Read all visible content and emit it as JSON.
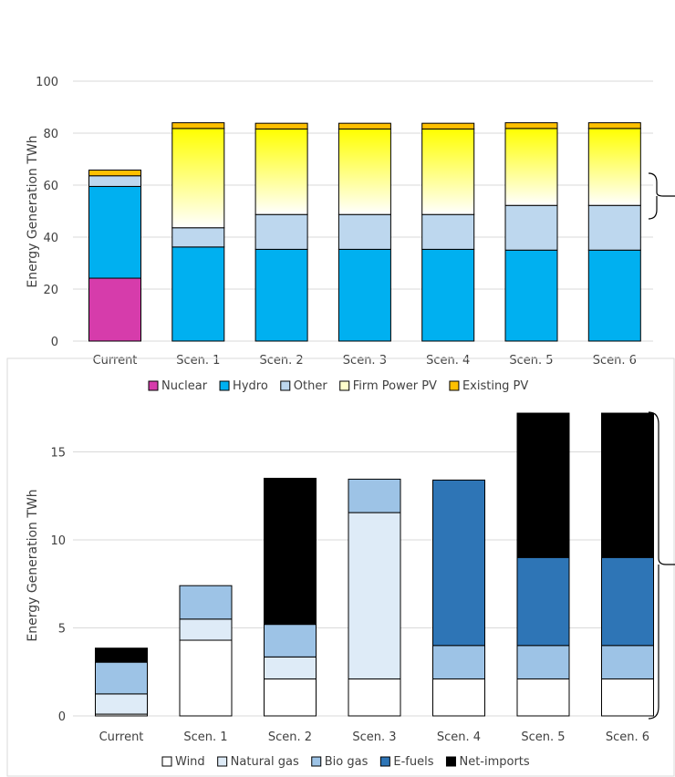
{
  "chart_data": [
    {
      "type": "bar",
      "stacked": true,
      "ylabel": "Energy Generation TWh",
      "ylim": [
        0,
        100
      ],
      "yticks": [
        "0",
        "20",
        "40",
        "60",
        "80",
        "100"
      ],
      "grid": true,
      "legend_position": "bottom",
      "categories": [
        "Current",
        "Scen. 1",
        "Scen. 2",
        "Scen. 3",
        "Scen. 4",
        "Scen. 5",
        "Scen. 6"
      ],
      "series": [
        {
          "name": "Nuclear",
          "color": "#d63cab",
          "values": [
            24.2,
            0,
            0,
            0,
            0,
            0,
            0
          ]
        },
        {
          "name": "Hydro",
          "color": "#00b0f0",
          "values": [
            35.3,
            36.2,
            35.3,
            35.3,
            35.3,
            35.0,
            35.0
          ]
        },
        {
          "name": "Other",
          "color": "#bdd7ee",
          "values": [
            4.1,
            7.4,
            13.4,
            13.4,
            13.4,
            17.2,
            17.2
          ]
        },
        {
          "name": "Firm Power PV",
          "color": "#ffff00",
          "gradient": true,
          "values": [
            0,
            38.2,
            32.9,
            32.9,
            32.9,
            29.6,
            29.6
          ]
        },
        {
          "name": "Existing PV",
          "color": "#ffc000",
          "values": [
            2.2,
            2.2,
            2.2,
            2.2,
            2.2,
            2.2,
            2.2
          ]
        }
      ]
    },
    {
      "type": "bar",
      "stacked": true,
      "ylabel": "Energy Generation TWh",
      "ylim": [
        0,
        17.2
      ],
      "yticks": [
        "0",
        "5",
        "10",
        "15"
      ],
      "grid": true,
      "legend_position": "bottom",
      "categories": [
        "Current",
        "Scen. 1",
        "Scen. 2",
        "Scen. 3",
        "Scen. 4",
        "Scen. 5",
        "Scen. 6"
      ],
      "series": [
        {
          "name": "Wind",
          "color": "#ffffff",
          "values": [
            0.1,
            4.3,
            2.1,
            2.1,
            2.1,
            2.1,
            2.1
          ]
        },
        {
          "name": "Natural gas",
          "color": "#deebf7",
          "values": [
            1.15,
            1.2,
            1.25,
            9.45,
            0,
            0,
            0
          ]
        },
        {
          "name": "Bio gas",
          "color": "#9dc3e6",
          "values": [
            1.8,
            1.9,
            1.85,
            1.9,
            1.9,
            1.9,
            1.9
          ]
        },
        {
          "name": "E-fuels",
          "color": "#2e75b6",
          "values": [
            0,
            0,
            0,
            0,
            9.4,
            5.0,
            5.0
          ]
        },
        {
          "name": "Net-imports",
          "color": "#000000",
          "values": [
            0.8,
            0,
            8.3,
            0,
            0,
            8.2,
            8.2
          ]
        }
      ]
    }
  ]
}
